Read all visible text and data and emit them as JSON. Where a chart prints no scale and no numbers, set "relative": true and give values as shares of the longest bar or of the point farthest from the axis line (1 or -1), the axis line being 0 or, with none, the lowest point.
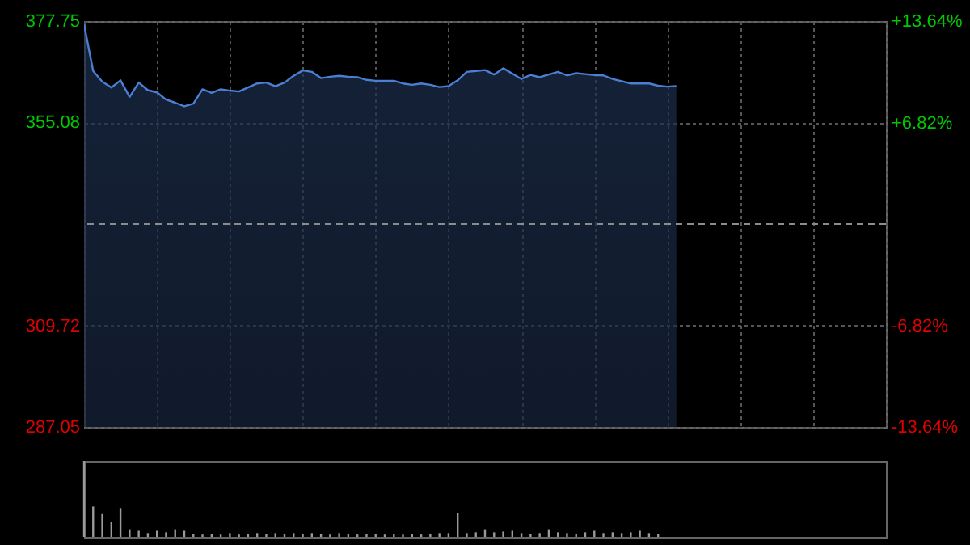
{
  "chart_data": [
    {
      "type": "area",
      "categories": [
        null,
        null,
        null,
        null,
        null,
        null,
        null,
        null,
        null,
        null,
        null,
        null,
        null,
        null,
        null,
        null,
        null,
        null,
        null,
        null,
        null,
        null,
        null,
        null,
        null,
        null,
        null,
        null,
        null,
        null,
        null,
        null,
        null,
        null,
        null,
        null,
        null,
        null,
        null,
        null,
        null,
        null,
        null,
        null,
        null,
        null,
        null,
        null,
        null,
        null,
        null,
        null,
        null,
        null,
        null,
        null,
        null,
        null,
        null,
        null,
        null,
        null,
        null,
        null,
        null,
        null,
        null,
        null,
        null,
        null,
        null,
        null,
        null,
        null,
        null,
        null,
        null,
        null,
        null,
        null,
        null,
        null,
        null,
        null,
        null,
        null,
        null,
        null,
        null
      ],
      "series": [
        {
          "color": "#4a7fd4",
          "values": [
            377.0,
            366.6,
            364.2,
            362.9,
            364.5,
            360.8,
            364.0,
            362.3,
            361.8,
            360.2,
            359.5,
            358.7,
            359.3,
            362.5,
            361.7,
            362.5,
            362.2,
            362.0,
            362.9,
            363.8,
            364.0,
            363.2,
            364.0,
            365.5,
            366.7,
            366.4,
            365.0,
            365.3,
            365.5,
            365.3,
            365.2,
            364.6,
            364.4,
            364.4,
            364.4,
            363.8,
            363.5,
            363.8,
            363.5,
            363.0,
            363.2,
            364.5,
            366.4,
            366.6,
            366.8,
            365.8,
            367.2,
            366.0,
            364.8,
            365.7,
            365.2,
            365.8,
            366.4,
            365.6,
            366.1,
            365.9,
            365.7,
            365.6,
            364.8,
            364.3,
            363.8,
            363.8,
            363.8,
            363.3,
            363.1,
            363.2,
            null,
            null,
            null,
            null,
            null,
            null,
            null,
            null,
            null,
            null,
            null,
            null,
            null,
            null,
            null,
            null,
            null,
            null,
            null,
            null,
            null,
            null,
            null
          ]
        }
      ],
      "ylim": [
        287.05,
        377.75
      ],
      "yticks": [
        287.05,
        309.72,
        355.08,
        377.75
      ],
      "y2lim": [
        -13.64,
        13.64
      ],
      "y2ticks": [
        {
          "value": -13.64,
          "label": "-13.64%"
        },
        {
          "value": -6.82,
          "label": "-6.82%"
        },
        {
          "value": 6.82,
          "label": "+6.82%"
        },
        {
          "value": 13.64,
          "label": "+13.64%"
        }
      ],
      "ref_lines": [
        {
          "axis": "y",
          "value": 332.4,
          "label": null,
          "line_style": "dashed",
          "color": "#8c8c8c"
        }
      ],
      "grid": true,
      "tick_labels": "y"
    },
    {
      "type": "bar",
      "relative": true,
      "categories": [
        null,
        null,
        null,
        null,
        null,
        null,
        null,
        null,
        null,
        null,
        null,
        null,
        null,
        null,
        null,
        null,
        null,
        null,
        null,
        null,
        null,
        null,
        null,
        null,
        null,
        null,
        null,
        null,
        null,
        null,
        null,
        null,
        null,
        null,
        null,
        null,
        null,
        null,
        null,
        null,
        null,
        null,
        null,
        null,
        null,
        null,
        null,
        null,
        null,
        null,
        null,
        null,
        null,
        null,
        null,
        null,
        null,
        null,
        null,
        null,
        null,
        null,
        null,
        null,
        null,
        null,
        null,
        null,
        null,
        null,
        null,
        null,
        null,
        null,
        null,
        null,
        null,
        null,
        null,
        null,
        null,
        null,
        null,
        null,
        null,
        null,
        null,
        null,
        null
      ],
      "series": [
        {
          "color": "#9a9a9a",
          "values": [
            1.0,
            0.4,
            0.3,
            0.2,
            0.38,
            0.1,
            0.08,
            0.05,
            0.08,
            0.06,
            0.1,
            0.08,
            0.04,
            0.03,
            0.04,
            0.03,
            0.05,
            0.03,
            0.04,
            0.05,
            0.04,
            0.05,
            0.04,
            0.05,
            0.04,
            0.05,
            0.04,
            0.03,
            0.05,
            0.04,
            0.03,
            0.04,
            0.04,
            0.03,
            0.04,
            0.03,
            0.04,
            0.03,
            0.04,
            0.05,
            0.05,
            0.31,
            0.05,
            0.06,
            0.1,
            0.06,
            0.07,
            0.08,
            0.05,
            0.04,
            0.05,
            0.1,
            0.06,
            0.05,
            0.04,
            0.06,
            0.08,
            0.05,
            0.06,
            0.05,
            0.06,
            0.08,
            0.05,
            0.04,
            null,
            null,
            null,
            null,
            null,
            null,
            null,
            null,
            null,
            null,
            null,
            null,
            null,
            null,
            null,
            null,
            null,
            null,
            null,
            null,
            null,
            null,
            null,
            null,
            null
          ]
        }
      ],
      "tick_labels": false
    }
  ]
}
